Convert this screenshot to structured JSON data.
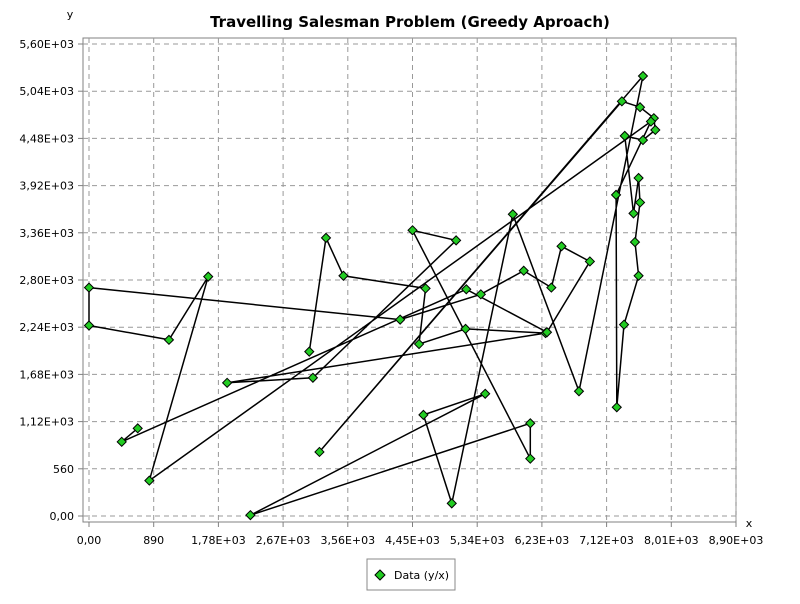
{
  "chart_data": {
    "type": "line",
    "title": "Travelling Salesman Problem (Greedy Aproach)",
    "xlabel": "x",
    "ylabel": "y",
    "xlim": [
      0,
      8900
    ],
    "ylim": [
      0,
      5600
    ],
    "x_ticks": [
      {
        "value": 0,
        "label": "0,00"
      },
      {
        "value": 890,
        "label": "890"
      },
      {
        "value": 1780,
        "label": "1,78E+03"
      },
      {
        "value": 2670,
        "label": "2,67E+03"
      },
      {
        "value": 3560,
        "label": "3,56E+03"
      },
      {
        "value": 4450,
        "label": "4,45E+03"
      },
      {
        "value": 5340,
        "label": "5,34E+03"
      },
      {
        "value": 6230,
        "label": "6,23E+03"
      },
      {
        "value": 7120,
        "label": "7,12E+03"
      },
      {
        "value": 8010,
        "label": "8,01E+03"
      },
      {
        "value": 8900,
        "label": "8,90E+03"
      }
    ],
    "y_ticks": [
      {
        "value": 0,
        "label": "0,00"
      },
      {
        "value": 560,
        "label": "560"
      },
      {
        "value": 1120,
        "label": "1,12E+03"
      },
      {
        "value": 1680,
        "label": "1,68E+03"
      },
      {
        "value": 2240,
        "label": "2,24E+03"
      },
      {
        "value": 2800,
        "label": "2,80E+03"
      },
      {
        "value": 3360,
        "label": "3,36E+03"
      },
      {
        "value": 3920,
        "label": "3,92E+03"
      },
      {
        "value": 4480,
        "label": "4,48E+03"
      },
      {
        "value": 5040,
        "label": "5,04E+03"
      },
      {
        "value": 5600,
        "label": "5,60E+03"
      }
    ],
    "grid": true,
    "legend_position": "bottom",
    "colors": {
      "marker_fill": "#22cc22",
      "marker_stroke": "#000000",
      "line": "#000000",
      "grid": "#999999"
    },
    "series": [
      {
        "name": "Data (y/x)",
        "points": [
          [
            3030,
            1950
          ],
          [
            3260,
            3300
          ],
          [
            3500,
            2850
          ],
          [
            4630,
            2700
          ],
          [
            4540,
            2040
          ],
          [
            5180,
            2220
          ],
          [
            6280,
            2170
          ],
          [
            1900,
            1580
          ],
          [
            3080,
            1640
          ],
          [
            5050,
            3270
          ],
          [
            4450,
            3390
          ],
          [
            6070,
            680
          ],
          [
            6070,
            1100
          ],
          [
            2220,
            10
          ],
          [
            5450,
            1450
          ],
          [
            4600,
            1200
          ],
          [
            4990,
            150
          ],
          [
            5830,
            3580
          ],
          [
            6740,
            1480
          ],
          [
            7620,
            5220
          ],
          [
            3170,
            760
          ],
          [
            7330,
            4920
          ],
          [
            7580,
            4850
          ],
          [
            7770,
            4720
          ],
          [
            7790,
            4580
          ],
          [
            7620,
            4460
          ],
          [
            7370,
            4510
          ],
          [
            7490,
            3590
          ],
          [
            7560,
            4010
          ],
          [
            7580,
            3720
          ],
          [
            7510,
            3250
          ],
          [
            7560,
            2850
          ],
          [
            7360,
            2270
          ],
          [
            7260,
            1290
          ],
          [
            7250,
            3810
          ],
          [
            7730,
            4680
          ],
          [
            830,
            420
          ],
          [
            1640,
            2840
          ],
          [
            1100,
            2090
          ],
          [
            0,
            2260
          ],
          [
            0,
            2710
          ],
          [
            4280,
            2330
          ],
          [
            5390,
            2630
          ],
          [
            5980,
            2910
          ],
          [
            6360,
            2710
          ],
          [
            6500,
            3200
          ],
          [
            6890,
            3020
          ],
          [
            6300,
            2180
          ],
          [
            5190,
            2690
          ],
          [
            450,
            880
          ],
          [
            670,
            1040
          ]
        ]
      }
    ]
  }
}
